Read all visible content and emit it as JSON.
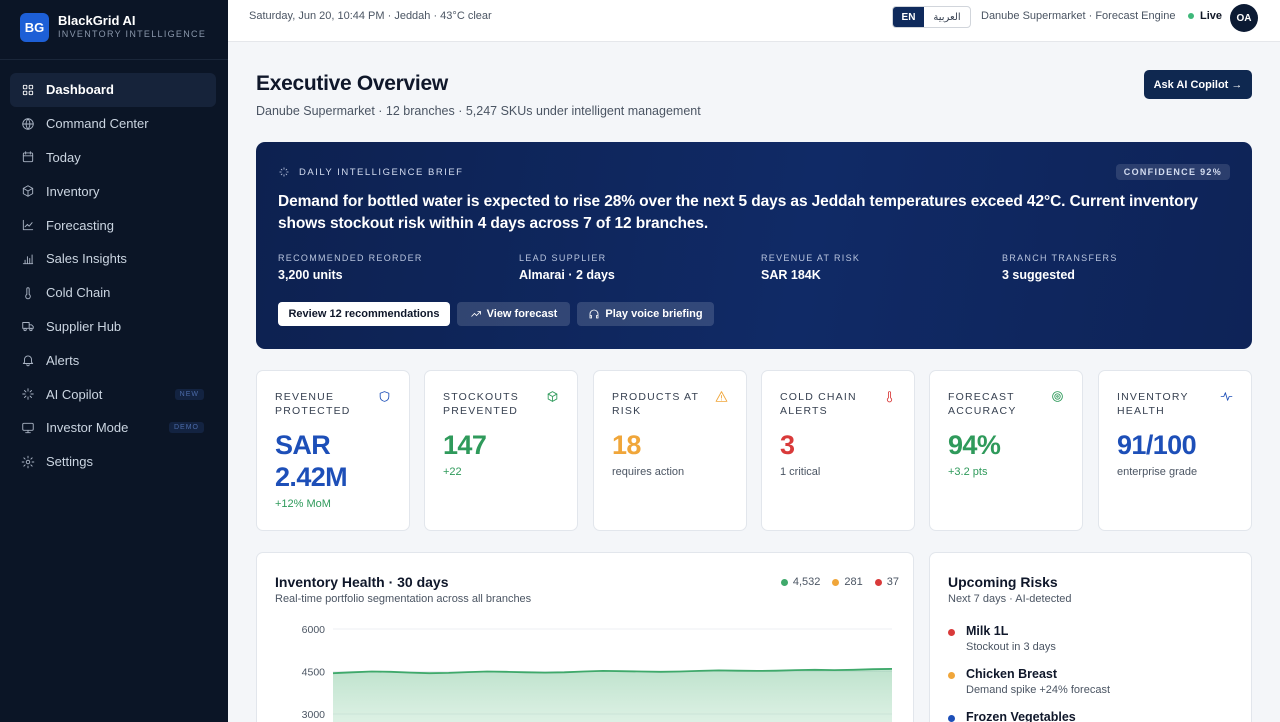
{
  "brand": {
    "logo": "BG",
    "name": "BlackGrid AI",
    "subtitle": "INVENTORY INTELLIGENCE"
  },
  "nav": [
    {
      "label": "Dashboard",
      "icon": "grid-icon",
      "active": true,
      "badge": ""
    },
    {
      "label": "Command Center",
      "icon": "globe-icon",
      "active": false,
      "badge": ""
    },
    {
      "label": "Today",
      "icon": "calendar-icon",
      "active": false,
      "badge": ""
    },
    {
      "label": "Inventory",
      "icon": "box-icon",
      "active": false,
      "badge": ""
    },
    {
      "label": "Forecasting",
      "icon": "trend-icon",
      "active": false,
      "badge": ""
    },
    {
      "label": "Sales Insights",
      "icon": "bar-chart-icon",
      "active": false,
      "badge": ""
    },
    {
      "label": "Cold Chain",
      "icon": "thermometer-icon",
      "active": false,
      "badge": ""
    },
    {
      "label": "Supplier Hub",
      "icon": "truck-icon",
      "active": false,
      "badge": ""
    },
    {
      "label": "Alerts",
      "icon": "bell-icon",
      "active": false,
      "badge": ""
    },
    {
      "label": "AI Copilot",
      "icon": "sparkle-icon",
      "active": false,
      "badge": "NEW"
    },
    {
      "label": "Investor Mode",
      "icon": "monitor-icon",
      "active": false,
      "badge": "DEMO"
    },
    {
      "label": "Settings",
      "icon": "gear-icon",
      "active": false,
      "badge": ""
    }
  ],
  "topbar": {
    "datetime": "Saturday, Jun 20, 10:44 PM · Jeddah · 43°C clear",
    "lang_en": "EN",
    "lang_ar": "العربية",
    "app_context": "Danube Supermarket · Forecast Engine",
    "live": "Live",
    "avatar": "OA"
  },
  "header": {
    "title": "Executive Overview",
    "subtitle": "Danube Supermarket · 12 branches · 5,247 SKUs under intelligent management",
    "copilot_button": "Ask AI Copilot →"
  },
  "brief": {
    "label": "DAILY INTELLIGENCE BRIEF",
    "confidence": "CONFIDENCE 92%",
    "text": "Demand for bottled water is expected to rise 28% over the next 5 days as Jeddah temperatures exceed 42°C. Current inventory shows stockout risk within 4 days across 7 of 12 branches.",
    "metrics": [
      {
        "label": "RECOMMENDED REORDER",
        "value": "3,200 units"
      },
      {
        "label": "LEAD SUPPLIER",
        "value": "Almarai · 2 days"
      },
      {
        "label": "REVENUE AT RISK",
        "value": "SAR 184K"
      },
      {
        "label": "BRANCH TRANSFERS",
        "value": "3 suggested"
      }
    ],
    "btn_review": "Review 12 recommendations",
    "btn_forecast": "View forecast",
    "btn_voice": "Play voice briefing"
  },
  "kpis": [
    {
      "label": "REVENUE PROTECTED",
      "value_line1": "SAR",
      "value_line2": "2.42M",
      "sub": "+12% MoM",
      "value_color": "#1d4fb8",
      "sub_color": "#2f9a5b",
      "icon": "shield-icon",
      "icon_color": "#1d4fb8"
    },
    {
      "label": "STOCKOUTS PREVENTED",
      "value_line1": "147",
      "value_line2": "",
      "sub": "+22",
      "value_color": "#2f9a5b",
      "sub_color": "#2f9a5b",
      "icon": "cube-icon",
      "icon_color": "#2f9a5b"
    },
    {
      "label": "PRODUCTS AT RISK",
      "value_line1": "18",
      "value_line2": "",
      "sub": "requires action",
      "value_color": "#f0a63a",
      "sub_color": "#4b5563",
      "icon": "warning-icon",
      "icon_color": "#f0a63a"
    },
    {
      "label": "COLD CHAIN ALERTS",
      "value_line1": "3",
      "value_line2": "",
      "sub": "1 critical",
      "value_color": "#d93a3a",
      "sub_color": "#4b5563",
      "icon": "thermometer-icon",
      "icon_color": "#d93a3a"
    },
    {
      "label": "FORECAST ACCURACY",
      "value_line1": "94%",
      "value_line2": "",
      "sub": "+3.2 pts",
      "value_color": "#2f9a5b",
      "sub_color": "#2f9a5b",
      "icon": "target-icon",
      "icon_color": "#2f9a5b"
    },
    {
      "label": "INVENTORY HEALTH",
      "value_line1": "91/100",
      "value_line2": "",
      "sub": "enterprise grade",
      "value_color": "#1d4fb8",
      "sub_color": "#4b5563",
      "icon": "pulse-icon",
      "icon_color": "#1d4fb8"
    }
  ],
  "health": {
    "title": "Inventory Health · 30 days",
    "subtitle": "Real-time portfolio segmentation across all branches",
    "legend": [
      {
        "value": "4,532",
        "color": "#3fa96b"
      },
      {
        "value": "281",
        "color": "#f0a63a"
      },
      {
        "value": "37",
        "color": "#d93a3a"
      }
    ]
  },
  "chart_data": {
    "type": "area",
    "yticks": [
      "6000",
      "4500",
      "3000"
    ],
    "ylim": [
      0,
      6000
    ],
    "series": [
      {
        "values": [
          4440,
          4470,
          4500,
          4490,
          4460,
          4440,
          4450,
          4480,
          4500,
          4490,
          4470,
          4460,
          4470,
          4500,
          4520,
          4510,
          4500,
          4490,
          4500,
          4520,
          4540,
          4530,
          4520,
          4530,
          4550,
          4560,
          4550,
          4560,
          4580,
          4590
        ]
      }
    ]
  },
  "risks": {
    "title": "Upcoming Risks",
    "subtitle": "Next 7 days · AI-detected",
    "items": [
      {
        "name": "Milk 1L",
        "desc": "Stockout in 3 days",
        "color": "#d93a3a"
      },
      {
        "name": "Chicken Breast",
        "desc": "Demand spike +24% forecast",
        "color": "#f0a63a"
      },
      {
        "name": "Frozen Vegetables",
        "desc": "",
        "color": "#1d4fb8"
      }
    ]
  }
}
